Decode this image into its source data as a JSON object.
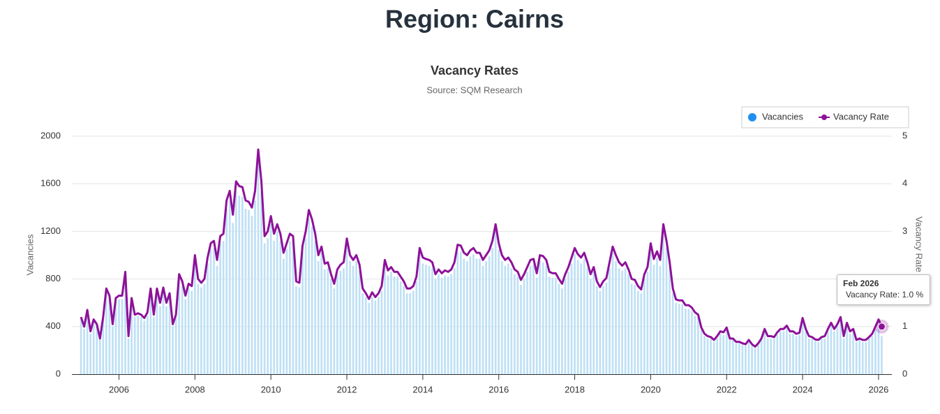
{
  "header": {
    "title": "Region: Cairns"
  },
  "chart_data": {
    "type": "combo",
    "title": "Vacancy Rates",
    "subtitle": "Source: SQM Research",
    "y_label": "Vacancies",
    "y2_label": "Vacancy Rate",
    "grid": true,
    "legend": "top-right",
    "xlim": [
      2004.76,
      2026.35
    ],
    "xticks": [
      2006,
      2008,
      2010,
      2012,
      2014,
      2016,
      2018,
      2020,
      2022,
      2024,
      2026
    ],
    "ylim": [
      0,
      2000
    ],
    "yticks": [
      0,
      400,
      800,
      1200,
      1600,
      2000
    ],
    "y2lim": [
      0,
      5
    ],
    "y2ticks": [
      0,
      1,
      2,
      3,
      4,
      5
    ],
    "x": [
      "2005-01",
      "2005-02",
      "2005-03",
      "2005-04",
      "2005-05",
      "2005-06",
      "2005-07",
      "2005-08",
      "2005-09",
      "2005-10",
      "2005-11",
      "2005-12",
      "2006-01",
      "2006-02",
      "2006-03",
      "2006-04",
      "2006-05",
      "2006-06",
      "2006-07",
      "2006-08",
      "2006-09",
      "2006-10",
      "2006-11",
      "2006-12",
      "2007-01",
      "2007-02",
      "2007-03",
      "2007-04",
      "2007-05",
      "2007-06",
      "2007-07",
      "2007-08",
      "2007-09",
      "2007-10",
      "2007-11",
      "2007-12",
      "2008-01",
      "2008-02",
      "2008-03",
      "2008-04",
      "2008-05",
      "2008-06",
      "2008-07",
      "2008-08",
      "2008-09",
      "2008-10",
      "2008-11",
      "2008-12",
      "2009-01",
      "2009-02",
      "2009-03",
      "2009-04",
      "2009-05",
      "2009-06",
      "2009-07",
      "2009-08",
      "2009-09",
      "2009-10",
      "2009-11",
      "2009-12",
      "2010-01",
      "2010-02",
      "2010-03",
      "2010-04",
      "2010-05",
      "2010-06",
      "2010-07",
      "2010-08",
      "2010-09",
      "2010-10",
      "2010-11",
      "2010-12",
      "2011-01",
      "2011-02",
      "2011-03",
      "2011-04",
      "2011-05",
      "2011-06",
      "2011-07",
      "2011-08",
      "2011-09",
      "2011-10",
      "2011-11",
      "2011-12",
      "2012-01",
      "2012-02",
      "2012-03",
      "2012-04",
      "2012-05",
      "2012-06",
      "2012-07",
      "2012-08",
      "2012-09",
      "2012-10",
      "2012-11",
      "2012-12",
      "2013-01",
      "2013-02",
      "2013-03",
      "2013-04",
      "2013-05",
      "2013-06",
      "2013-07",
      "2013-08",
      "2013-09",
      "2013-10",
      "2013-11",
      "2013-12",
      "2014-01",
      "2014-02",
      "2014-03",
      "2014-04",
      "2014-05",
      "2014-06",
      "2014-07",
      "2014-08",
      "2014-09",
      "2014-10",
      "2014-11",
      "2014-12",
      "2015-01",
      "2015-02",
      "2015-03",
      "2015-04",
      "2015-05",
      "2015-06",
      "2015-07",
      "2015-08",
      "2015-09",
      "2015-10",
      "2015-11",
      "2015-12",
      "2016-01",
      "2016-02",
      "2016-03",
      "2016-04",
      "2016-05",
      "2016-06",
      "2016-07",
      "2016-08",
      "2016-09",
      "2016-10",
      "2016-11",
      "2016-12",
      "2017-01",
      "2017-02",
      "2017-03",
      "2017-04",
      "2017-05",
      "2017-06",
      "2017-07",
      "2017-08",
      "2017-09",
      "2017-10",
      "2017-11",
      "2017-12",
      "2018-01",
      "2018-02",
      "2018-03",
      "2018-04",
      "2018-05",
      "2018-06",
      "2018-07",
      "2018-08",
      "2018-09",
      "2018-10",
      "2018-11",
      "2018-12",
      "2019-01",
      "2019-02",
      "2019-03",
      "2019-04",
      "2019-05",
      "2019-06",
      "2019-07",
      "2019-08",
      "2019-09",
      "2019-10",
      "2019-11",
      "2019-12",
      "2020-01",
      "2020-02",
      "2020-03",
      "2020-04",
      "2020-05",
      "2020-06",
      "2020-07",
      "2020-08",
      "2020-09",
      "2020-10",
      "2020-11",
      "2020-12",
      "2021-01",
      "2021-02",
      "2021-03",
      "2021-04",
      "2021-05",
      "2021-06",
      "2021-07",
      "2021-08",
      "2021-09",
      "2021-10",
      "2021-11",
      "2021-12",
      "2022-01",
      "2022-02",
      "2022-03",
      "2022-04",
      "2022-05",
      "2022-06",
      "2022-07",
      "2022-08",
      "2022-09",
      "2022-10",
      "2022-11",
      "2022-12",
      "2023-01",
      "2023-02",
      "2023-03",
      "2023-04",
      "2023-05",
      "2023-06",
      "2023-07",
      "2023-08",
      "2023-09",
      "2023-10",
      "2023-11",
      "2023-12",
      "2024-01",
      "2024-02",
      "2024-03",
      "2024-04",
      "2024-05",
      "2024-06",
      "2024-07",
      "2024-08",
      "2024-09",
      "2024-10",
      "2024-11",
      "2024-12",
      "2025-01",
      "2025-02",
      "2025-03",
      "2025-04",
      "2025-05",
      "2025-06",
      "2025-07",
      "2025-08",
      "2025-09",
      "2025-10",
      "2025-11",
      "2025-12",
      "2026-01",
      "2026-02"
    ],
    "series": [
      {
        "name": "Vacancies",
        "type": "bar",
        "color": "#bfe0f5",
        "values": [
          460,
          380,
          510,
          340,
          440,
          400,
          290,
          460,
          680,
          630,
          400,
          610,
          630,
          630,
          820,
          300,
          610,
          480,
          490,
          480,
          450,
          490,
          680,
          480,
          680,
          570,
          690,
          570,
          650,
          400,
          480,
          800,
          740,
          630,
          720,
          700,
          950,
          760,
          730,
          760,
          930,
          1050,
          1060,
          910,
          1100,
          1120,
          1390,
          1460,
          1270,
          1540,
          1500,
          1490,
          1390,
          1380,
          1330,
          1460,
          1790,
          1540,
          1100,
          1140,
          1260,
          1120,
          1200,
          1120,
          970,
          1050,
          1120,
          1100,
          740,
          730,
          1030,
          1140,
          1310,
          1240,
          1120,
          950,
          1020,
          880,
          890,
          800,
          720,
          840,
          870,
          890,
          1080,
          950,
          910,
          950,
          870,
          680,
          650,
          600,
          650,
          620,
          650,
          700,
          910,
          830,
          860,
          820,
          820,
          780,
          740,
          680,
          680,
          700,
          780,
          1010,
          930,
          920,
          910,
          890,
          800,
          840,
          810,
          830,
          820,
          840,
          890,
          1030,
          1030,
          970,
          950,
          990,
          1010,
          970,
          970,
          910,
          950,
          990,
          1060,
          1200,
          1050,
          950,
          910,
          930,
          890,
          840,
          820,
          750,
          800,
          860,
          910,
          920,
          810,
          950,
          940,
          910,
          820,
          810,
          810,
          760,
          720,
          800,
          860,
          930,
          1010,
          960,
          930,
          970,
          890,
          800,
          860,
          740,
          700,
          740,
          770,
          890,
          1020,
          950,
          890,
          870,
          890,
          840,
          760,
          750,
          700,
          680,
          800,
          860,
          1050,
          920,
          980,
          910,
          1200,
          1060,
          890,
          680,
          600,
          590,
          590,
          550,
          550,
          530,
          490,
          480,
          370,
          320,
          300,
          300,
          270,
          300,
          340,
          330,
          370,
          290,
          290,
          260,
          260,
          250,
          240,
          270,
          240,
          220,
          250,
          290,
          360,
          300,
          300,
          300,
          330,
          360,
          360,
          390,
          340,
          340,
          320,
          330,
          450,
          360,
          300,
          300,
          280,
          270,
          300,
          300,
          360,
          410,
          360,
          400,
          460,
          300,
          410,
          340,
          360,
          270,
          290,
          270,
          270,
          300,
          320,
          380,
          440,
          320
        ]
      },
      {
        "name": "Vacancy Rate",
        "type": "line",
        "axis": "y2",
        "color": "#8e1199",
        "values": [
          1.2,
          1.0,
          1.35,
          0.9,
          1.15,
          1.05,
          0.75,
          1.2,
          1.8,
          1.65,
          1.05,
          1.6,
          1.65,
          1.65,
          2.15,
          0.8,
          1.6,
          1.25,
          1.28,
          1.25,
          1.18,
          1.3,
          1.8,
          1.25,
          1.8,
          1.5,
          1.82,
          1.5,
          1.7,
          1.05,
          1.25,
          2.1,
          1.95,
          1.65,
          1.9,
          1.85,
          2.5,
          2.0,
          1.92,
          2.0,
          2.45,
          2.75,
          2.8,
          2.4,
          2.9,
          2.95,
          3.65,
          3.85,
          3.35,
          4.05,
          3.95,
          3.93,
          3.65,
          3.62,
          3.5,
          3.85,
          4.72,
          4.05,
          2.9,
          3.0,
          3.32,
          2.95,
          3.15,
          2.95,
          2.55,
          2.75,
          2.95,
          2.9,
          1.95,
          1.92,
          2.7,
          3.0,
          3.45,
          3.25,
          2.95,
          2.5,
          2.68,
          2.32,
          2.35,
          2.1,
          1.9,
          2.2,
          2.3,
          2.35,
          2.85,
          2.5,
          2.4,
          2.5,
          2.3,
          1.8,
          1.7,
          1.58,
          1.72,
          1.62,
          1.7,
          1.85,
          2.4,
          2.18,
          2.25,
          2.15,
          2.15,
          2.05,
          1.95,
          1.8,
          1.8,
          1.85,
          2.05,
          2.65,
          2.45,
          2.42,
          2.4,
          2.35,
          2.1,
          2.2,
          2.12,
          2.18,
          2.15,
          2.2,
          2.35,
          2.72,
          2.7,
          2.55,
          2.5,
          2.6,
          2.65,
          2.55,
          2.55,
          2.4,
          2.5,
          2.6,
          2.8,
          3.15,
          2.75,
          2.5,
          2.4,
          2.45,
          2.35,
          2.2,
          2.15,
          1.98,
          2.1,
          2.25,
          2.4,
          2.42,
          2.12,
          2.5,
          2.48,
          2.4,
          2.15,
          2.12,
          2.12,
          2.0,
          1.9,
          2.1,
          2.25,
          2.45,
          2.65,
          2.52,
          2.45,
          2.55,
          2.35,
          2.1,
          2.25,
          1.95,
          1.83,
          1.95,
          2.02,
          2.35,
          2.68,
          2.5,
          2.35,
          2.28,
          2.35,
          2.2,
          2.0,
          1.98,
          1.85,
          1.78,
          2.1,
          2.25,
          2.75,
          2.42,
          2.58,
          2.4,
          3.15,
          2.8,
          2.35,
          1.8,
          1.57,
          1.55,
          1.55,
          1.45,
          1.45,
          1.4,
          1.3,
          1.25,
          0.98,
          0.85,
          0.8,
          0.78,
          0.72,
          0.8,
          0.9,
          0.88,
          0.98,
          0.75,
          0.75,
          0.68,
          0.68,
          0.65,
          0.63,
          0.72,
          0.63,
          0.58,
          0.65,
          0.75,
          0.95,
          0.8,
          0.8,
          0.78,
          0.88,
          0.95,
          0.95,
          1.02,
          0.9,
          0.9,
          0.85,
          0.87,
          1.18,
          0.95,
          0.8,
          0.78,
          0.73,
          0.72,
          0.78,
          0.8,
          0.95,
          1.08,
          0.95,
          1.05,
          1.2,
          0.8,
          1.08,
          0.9,
          0.95,
          0.72,
          0.75,
          0.72,
          0.72,
          0.78,
          0.85,
          1.0,
          1.15,
          1.0
        ]
      }
    ],
    "tooltip": {
      "title": "Feb 2026",
      "text": "Vacancy Rate: 1.0 %"
    }
  }
}
